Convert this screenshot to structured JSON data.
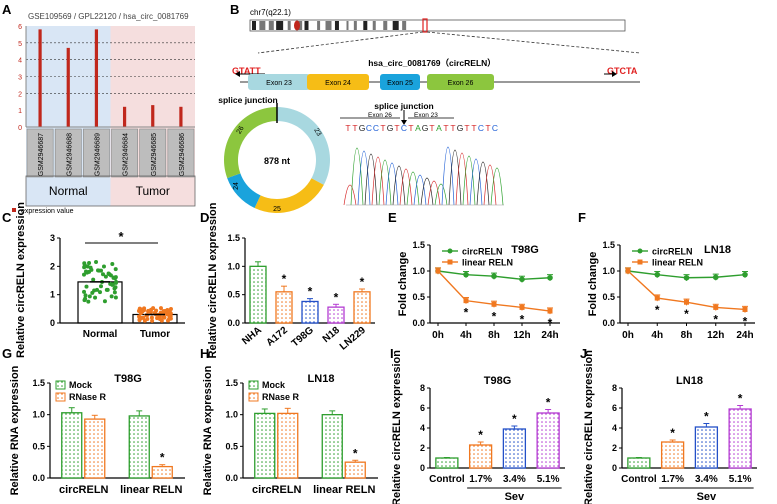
{
  "panel_labels": [
    "A",
    "B",
    "C",
    "D",
    "E",
    "F",
    "G",
    "H",
    "I",
    "J"
  ],
  "colors": {
    "green": "#2e9e2e",
    "orange": "#f07820",
    "red": "#c0271c",
    "blue": "#2350c8",
    "purple": "#b43cd2",
    "normal_bg": "#d9e6f5",
    "tumor_bg": "#f5dede",
    "exon23": "#a8d8e0",
    "exon24": "#f6bd16",
    "exon25": "#1aa3dc",
    "exon26": "#8cc63e"
  },
  "panel_a": {
    "title": "GSE109569 / GPL22120 / hsa_circ_0081769",
    "legend": "expression value",
    "group_normal": "Normal",
    "group_tumor": "Tumor"
  },
  "panel_b": {
    "chrom_label": "chr7(q22.1)",
    "circ_title": "hsa_circ_0081769（circRELN）",
    "left_seq": "GTATT",
    "right_seq": "GTCTA",
    "exons": [
      "Exon 23",
      "Exon 24",
      "Exon 25",
      "Exon 26"
    ],
    "junction_label_ring": "splice junction",
    "ring_center": "878 nt",
    "ring_segments": [
      "26",
      "23",
      "24",
      "25"
    ],
    "junction_label_seq": "splice junction",
    "seq_exon_left": "Exon 26",
    "seq_exon_right": "Exon 23",
    "sequence": [
      "T",
      "T",
      "G",
      "C",
      "C",
      "T",
      "G",
      "T",
      "C",
      "T",
      "A",
      "G",
      "T",
      "A",
      "T",
      "T",
      "G",
      "T",
      "T",
      "C",
      "T",
      "C"
    ]
  },
  "chart_data": [
    {
      "panel": "A",
      "type": "bar",
      "title": "GSE109569 / GPL22120 / hsa_circ_0081769",
      "categories": [
        "GSM2946687",
        "GSM2946688",
        "GSM2946689",
        "GSM2946684",
        "GSM2946685",
        "GSM2946686"
      ],
      "values": [
        5.8,
        4.7,
        5.8,
        1.2,
        1.3,
        1.2
      ],
      "groups": [
        "Normal",
        "Normal",
        "Normal",
        "Tumor",
        "Tumor",
        "Tumor"
      ],
      "ylim": [
        0,
        6
      ],
      "yticks": [
        "0",
        "1",
        "2",
        "3",
        "4",
        "5",
        "6"
      ],
      "legend": [
        "expression value"
      ]
    },
    {
      "panel": "C",
      "type": "scatter",
      "categories": [
        "Normal",
        "Tumor"
      ],
      "values": [
        1.45,
        0.3
      ],
      "ylabel": "Relative circRELN expression",
      "ylim": [
        0,
        3
      ],
      "yticks": [
        "0",
        "1",
        "2",
        "3"
      ],
      "annotation": "*"
    },
    {
      "panel": "D",
      "type": "bar",
      "categories": [
        "NHA",
        "A172",
        "T98G",
        "N18",
        "LN229"
      ],
      "values": [
        1.0,
        0.55,
        0.38,
        0.28,
        0.55
      ],
      "errors": [
        0.08,
        0.1,
        0.05,
        0.05,
        0.05
      ],
      "ylabel": "Relative circRELN expression",
      "ylim": [
        0,
        1.5
      ],
      "yticks": [
        "0.0",
        "0.5",
        "1.0",
        "1.5"
      ],
      "stars": [
        "",
        "*",
        "*",
        "*",
        "*"
      ]
    },
    {
      "panel": "E",
      "type": "line",
      "title": "T98G",
      "x": [
        "0h",
        "4h",
        "8h",
        "12h",
        "24h"
      ],
      "series": [
        {
          "name": "circRELN",
          "values": [
            1.0,
            0.93,
            0.9,
            0.84,
            0.87
          ]
        },
        {
          "name": "linear RELN",
          "values": [
            1.0,
            0.43,
            0.36,
            0.3,
            0.23
          ]
        }
      ],
      "ylabel": "Fold change",
      "ylim": [
        0,
        1.5
      ],
      "yticks": [
        "0.0",
        "0.5",
        "1.0",
        "1.5"
      ],
      "stars": [
        "",
        "*",
        "*",
        "*",
        "*"
      ]
    },
    {
      "panel": "F",
      "type": "line",
      "title": "LN18",
      "x": [
        "0h",
        "4h",
        "8h",
        "12h",
        "24h"
      ],
      "series": [
        {
          "name": "circRELN",
          "values": [
            1.0,
            0.93,
            0.87,
            0.88,
            0.93
          ]
        },
        {
          "name": "linear RELN",
          "values": [
            1.0,
            0.48,
            0.4,
            0.3,
            0.26
          ]
        }
      ],
      "ylabel": "Fold change",
      "ylim": [
        0,
        1.5
      ],
      "yticks": [
        "0.0",
        "0.5",
        "1.0",
        "1.5"
      ],
      "stars": [
        "",
        "*",
        "*",
        "*",
        "*"
      ]
    },
    {
      "panel": "G",
      "type": "bar",
      "title": "T98G",
      "categories": [
        "circRELN",
        "linear RELN"
      ],
      "series": [
        {
          "name": "Mock",
          "values": [
            1.03,
            0.98
          ],
          "errors": [
            0.08,
            0.08
          ]
        },
        {
          "name": "RNase R",
          "values": [
            0.93,
            0.18
          ],
          "errors": [
            0.06,
            0.03
          ]
        }
      ],
      "ylabel": "Relative RNA expression",
      "ylim": [
        0,
        1.5
      ],
      "yticks": [
        "0.0",
        "0.5",
        "1.0",
        "1.5"
      ],
      "annotation": "*"
    },
    {
      "panel": "H",
      "type": "bar",
      "title": "LN18",
      "categories": [
        "circRELN",
        "linear RELN"
      ],
      "series": [
        {
          "name": "Mock",
          "values": [
            1.02,
            1.0
          ],
          "errors": [
            0.07,
            0.06
          ]
        },
        {
          "name": "RNase R",
          "values": [
            1.02,
            0.25
          ],
          "errors": [
            0.08,
            0.03
          ]
        }
      ],
      "ylabel": "Relative RNA expression",
      "ylim": [
        0,
        1.5
      ],
      "yticks": [
        "0.0",
        "0.5",
        "1.0",
        "1.5"
      ],
      "annotation": "*"
    },
    {
      "panel": "I",
      "type": "bar",
      "title": "T98G",
      "categories": [
        "Control",
        "1.7%",
        "3.4%",
        "5.1%"
      ],
      "values": [
        1.0,
        2.3,
        3.9,
        5.5
      ],
      "errors": [
        0.05,
        0.3,
        0.3,
        0.35
      ],
      "ylabel": "Relative circRELN expression",
      "xlabel_group": "Sev",
      "ylim": [
        0,
        8
      ],
      "yticks": [
        "0",
        "2",
        "4",
        "6",
        "8"
      ],
      "stars": [
        "",
        "*",
        "*",
        "*"
      ]
    },
    {
      "panel": "J",
      "type": "bar",
      "title": "LN18",
      "categories": [
        "Control",
        "1.7%",
        "3.4%",
        "5.1%"
      ],
      "values": [
        1.0,
        2.6,
        4.1,
        5.9
      ],
      "errors": [
        0.05,
        0.2,
        0.35,
        0.35
      ],
      "ylabel": "Relative circRELN expression",
      "xlabel_group": "Sev",
      "ylim": [
        0,
        8
      ],
      "yticks": [
        "0",
        "2",
        "4",
        "6",
        "8"
      ],
      "stars": [
        "",
        "*",
        "*",
        "*"
      ]
    }
  ]
}
